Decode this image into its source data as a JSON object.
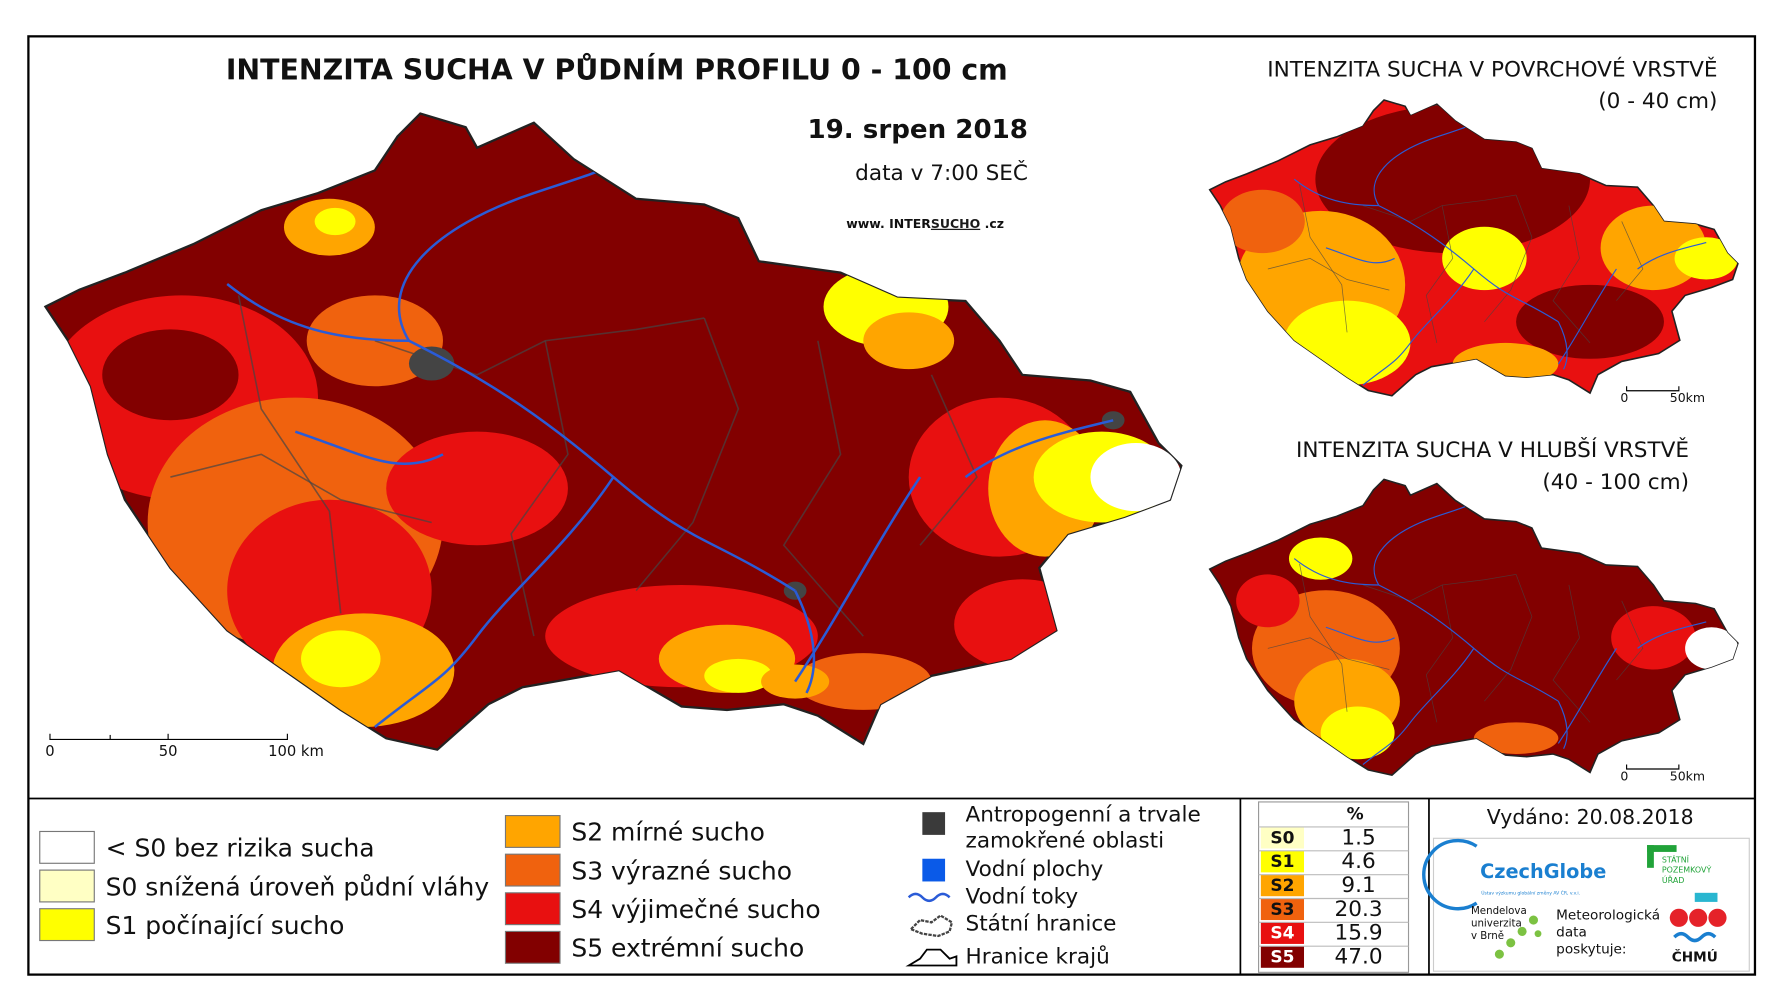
{
  "main_title": "INTENZITA SUCHA V PŮDNÍM PROFILU 0 - 100 cm",
  "date": "19. srpen 2018",
  "data_time": "data v 7:00 SEČ",
  "website": {
    "prefix": "www. INTER",
    "highlight": "SUCHO",
    "suffix": " .cz"
  },
  "main_scale": [
    "0",
    "50",
    "100 km"
  ],
  "inset_top": {
    "title": "INTENZITA SUCHA V POVRCHOVÉ VRSTVĚ",
    "subtitle": "(0 - 40 cm)",
    "scale": [
      "0",
      "50km"
    ]
  },
  "inset_bottom": {
    "title": "INTENZITA SUCHA V HLUBŠÍ VRSTVĚ",
    "subtitle": "(40 - 100 cm)",
    "scale": [
      "0",
      "50km"
    ]
  },
  "legend": [
    {
      "label": "< S0 bez rizika sucha",
      "color": "#ffffff"
    },
    {
      "label": "S0 snížená úroveň půdní vláhy",
      "color": "#ffffc4"
    },
    {
      "label": "S1 počínající sucho",
      "color": "#ffff00"
    },
    {
      "label": "S2 mírné sucho",
      "color": "#ffa500"
    },
    {
      "label": "S3 výrazné sucho",
      "color": "#f0620e"
    },
    {
      "label": "S4 výjimečné sucho",
      "color": "#e81010"
    },
    {
      "label": "S5 extrémní sucho",
      "color": "#820000"
    }
  ],
  "symbols": [
    {
      "label": "Antropogenní a trvale",
      "label2": "zamokřené oblasti"
    },
    {
      "label": "Vodní plochy"
    },
    {
      "label": "Vodní toky"
    },
    {
      "label": "Státní hranice"
    },
    {
      "label": "Hranice krajů"
    }
  ],
  "table": {
    "header": "%",
    "rows": [
      {
        "code": "S0",
        "value": "1.5",
        "color": "#ffffc4"
      },
      {
        "code": "S1",
        "value": "4.6",
        "color": "#ffff00"
      },
      {
        "code": "S2",
        "value": "9.1",
        "color": "#ffa500"
      },
      {
        "code": "S3",
        "value": "20.3",
        "color": "#f0620e"
      },
      {
        "code": "S4",
        "value": "15.9",
        "color": "#e81010"
      },
      {
        "code": "S5",
        "value": "47.0",
        "color": "#820000"
      }
    ]
  },
  "issued": "Vydáno: 20.08.2018",
  "logos": {
    "czechglobe": "CzechGlobe",
    "czechglobe_sub": "Ústav výzkumu globální změny AV ČR, v.v.i.",
    "spu": [
      "STÁTNÍ",
      "POZEMKOVÝ",
      "ÚŘAD"
    ],
    "mendelu": [
      "Mendelova",
      "univerzita",
      "v Brně"
    ],
    "met": [
      "Meteorologická",
      "data",
      "poskytuje:"
    ],
    "chmu": "ČHMÚ"
  }
}
